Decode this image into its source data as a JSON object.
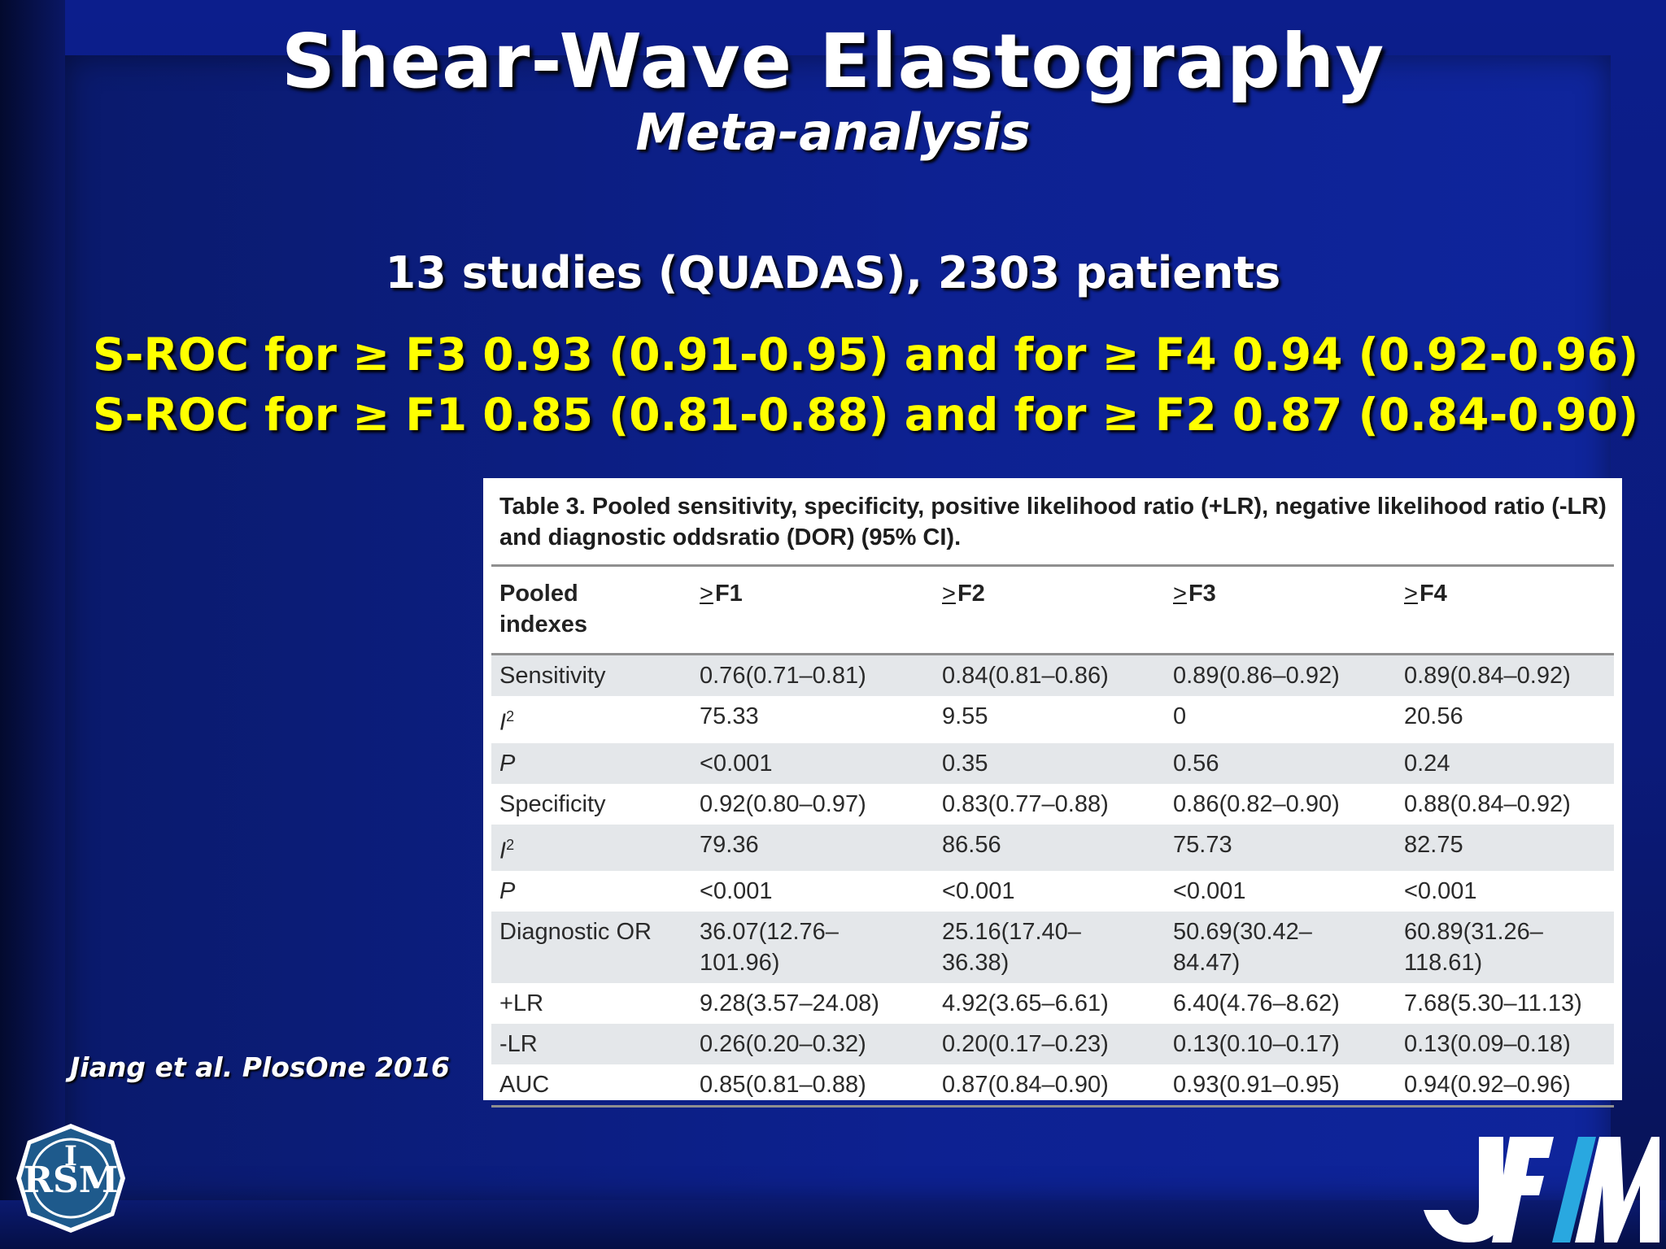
{
  "slide": {
    "title": "Shear-Wave Elastography",
    "subtitle": "Meta-analysis",
    "studies_line": "13 studies (QUADAS), 2303 patients",
    "sroc_line_1": "S-ROC for ≥ F3 0.93 (0.91-0.95) and for ≥ F4 0.94 (0.92-0.96)",
    "sroc_line_2": "S-ROC for ≥ F1 0.85 (0.81-0.88) and for ≥ F2 0.87 (0.84-0.90)",
    "citation": "Jiang et al. PlosOne 2016"
  },
  "table": {
    "caption_line_1": "Table 3.  Pooled sensitivity, specificity, positive likelihood ratio (+LR), negative likelihood ratio (-LR)",
    "caption_line_2": "and diagnostic oddsratio (DOR) (95% CI).",
    "header": {
      "col0_line1": "Pooled",
      "col0_line2": "indexes",
      "ge_symbol": ">",
      "col1": "F1",
      "col2": "F2",
      "col3": "F3",
      "col4": "F4"
    },
    "rows": [
      {
        "label": "Sensitivity",
        "c1": "0.76(0.71–0.81)",
        "c2": "0.84(0.81–0.86)",
        "c3": "0.89(0.86–0.92)",
        "c4": "0.89(0.84–0.92)"
      },
      {
        "label": "I",
        "sup": "2",
        "c1": "75.33",
        "c2": "9.55",
        "c3": "0",
        "c4": "20.56"
      },
      {
        "label": "P",
        "c1": "<0.001",
        "c2": "0.35",
        "c3": "0.56",
        "c4": "0.24"
      },
      {
        "label": "Specificity",
        "c1": "0.92(0.80–0.97)",
        "c2": "0.83(0.77–0.88)",
        "c3": "0.86(0.82–0.90)",
        "c4": "0.88(0.84–0.92)"
      },
      {
        "label": "I",
        "sup": "2",
        "c1": "79.36",
        "c2": "86.56",
        "c3": "75.73",
        "c4": "82.75"
      },
      {
        "label": "P",
        "c1": "<0.001",
        "c2": "<0.001",
        "c3": "<0.001",
        "c4": "<0.001"
      },
      {
        "label": "Diagnostic OR",
        "c1a": "36.07(12.76–",
        "c1b": "101.96)",
        "c2a": "25.16(17.40–",
        "c2b": "36.38)",
        "c3a": "50.69(30.42–",
        "c3b": "84.47)",
        "c4a": "60.89(31.26–",
        "c4b": "118.61)"
      },
      {
        "label": "+LR",
        "c1": "9.28(3.57–24.08)",
        "c2": "4.92(3.65–6.61)",
        "c3": "6.40(4.76–8.62)",
        "c4": "7.68(5.30–11.13)"
      },
      {
        "label": "-LR",
        "c1": "0.26(0.20–0.32)",
        "c2": "0.20(0.17–0.23)",
        "c3": "0.13(0.10–0.17)",
        "c4": "0.13(0.09–0.18)"
      },
      {
        "label": "AUC",
        "c1": "0.85(0.81–0.88)",
        "c2": "0.87(0.84–0.90)",
        "c3": "0.93(0.91–0.95)",
        "c4": "0.94(0.92–0.96)"
      }
    ]
  },
  "logos": {
    "left_logo_text": "RISM",
    "right_logo_text": "JFIM",
    "colors": {
      "rism_fill": "#1e5a8c",
      "jfim_white": "#ffffff",
      "jfim_blue": "#29a8e0"
    }
  }
}
